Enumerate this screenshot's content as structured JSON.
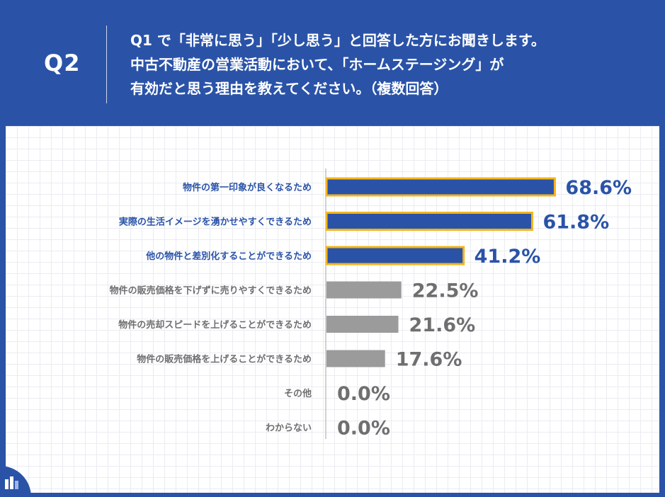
{
  "header": {
    "badge": "Q2",
    "question_lines": [
      "Q1 で「非常に思う」「少し思う」と回答した方にお聞きします。",
      "中古不動産の営業活動において、「ホームステージング」が",
      "有効だと思う理由を教えてください。（複数回答）"
    ]
  },
  "colors": {
    "header_bg": "#2a53a8",
    "highlight_bar": "#2a53a8",
    "highlight_border": "#f4b41a",
    "highlight_text": "#2a53a8",
    "normal_bar": "#9b9b9b",
    "normal_text": "#6f6f6f"
  },
  "chart_data": {
    "type": "bar",
    "orientation": "horizontal",
    "categories": [
      "物件の第一印象が良くなるため",
      "実際の生活イメージを湧かせやすくできるため",
      "他の物件と差別化することができるため",
      "物件の販売価格を下げずに売りやすくできるため",
      "物件の売却スピードを上げることができるため",
      "物件の販売価格を上げることができるため",
      "その他",
      "わからない"
    ],
    "values": [
      68.6,
      61.8,
      41.2,
      22.5,
      21.6,
      17.6,
      0.0,
      0.0
    ],
    "value_labels": [
      "68.6%",
      "61.8%",
      "41.2%",
      "22.5%",
      "21.6%",
      "17.6%",
      "0.0%",
      "0.0%"
    ],
    "highlighted": [
      true,
      true,
      true,
      false,
      false,
      false,
      false,
      false
    ],
    "xlim": [
      0,
      100
    ],
    "grid": true,
    "legend": "none"
  },
  "footer": {
    "logo_icon": "company-logo-icon"
  }
}
